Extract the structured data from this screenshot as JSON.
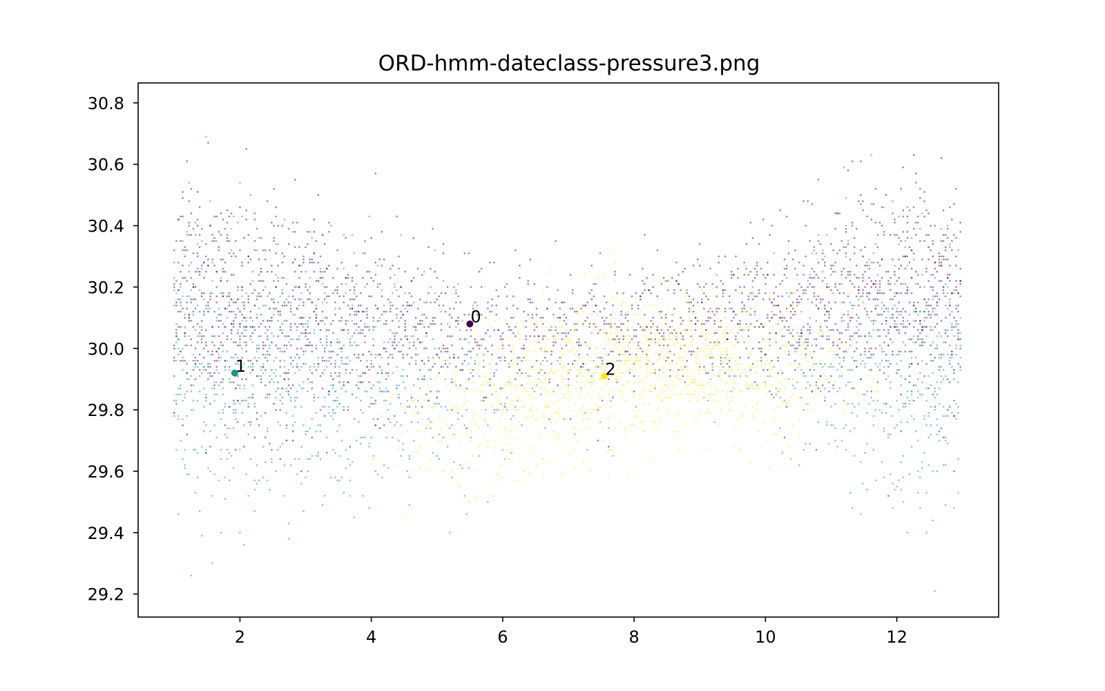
{
  "chart_data": {
    "type": "scatter",
    "title": "ORD-hmm-dateclass-pressure3.png",
    "xlabel": "",
    "ylabel": "",
    "xlim": [
      0.45,
      13.55
    ],
    "ylim": [
      29.125,
      30.865
    ],
    "xticks": [
      2,
      4,
      6,
      8,
      10,
      12
    ],
    "yticks": [
      29.2,
      29.4,
      29.6,
      29.8,
      30.0,
      30.2,
      30.4,
      30.6,
      30.8
    ],
    "ytick_labels": [
      "29.2",
      "29.4",
      "29.6",
      "29.8",
      "30.0",
      "30.2",
      "30.4",
      "30.6",
      "30.8"
    ],
    "grid": false,
    "legend": "none",
    "point_opacity": 0.5,
    "points_per_month_column": 31,
    "series": [
      {
        "color": "#440154",
        "center": [
          5.5,
          30.08
        ],
        "center_label": "0",
        "seasonal_mean": [
          30.15,
          30.15,
          30.1,
          30.06,
          30.05,
          30.06,
          30.05,
          30.07,
          30.1,
          30.13,
          30.16,
          30.18,
          30.18
        ],
        "seasonal_spread": [
          0.16,
          0.16,
          0.15,
          0.12,
          0.11,
          0.09,
          0.08,
          0.08,
          0.09,
          0.11,
          0.13,
          0.15,
          0.16
        ],
        "seasonal_density": [
          0.95,
          0.95,
          0.9,
          0.7,
          0.55,
          0.4,
          0.42,
          0.5,
          0.5,
          0.65,
          0.8,
          0.95,
          0.95
        ]
      },
      {
        "color": "#21918c",
        "center": [
          1.92,
          29.92
        ],
        "center_label": "1",
        "seasonal_mean": [
          29.95,
          29.95,
          29.92,
          29.9,
          29.88,
          29.85,
          29.9,
          29.95,
          29.98,
          29.98,
          29.95,
          29.92,
          29.92
        ],
        "seasonal_spread": [
          0.2,
          0.2,
          0.19,
          0.17,
          0.15,
          0.12,
          0.1,
          0.1,
          0.1,
          0.12,
          0.18,
          0.2,
          0.2
        ],
        "seasonal_density": [
          0.9,
          0.9,
          0.85,
          0.65,
          0.4,
          0.18,
          0.08,
          0.05,
          0.05,
          0.15,
          0.55,
          0.85,
          0.9
        ]
      },
      {
        "color": "#fde725",
        "center": [
          7.55,
          29.91
        ],
        "center_label": "2",
        "seasonal_mean": [
          29.85,
          29.85,
          29.82,
          29.8,
          29.8,
          29.85,
          29.9,
          29.93,
          29.95,
          29.95,
          29.93,
          29.9,
          29.9
        ],
        "seasonal_spread": [
          0.1,
          0.1,
          0.1,
          0.1,
          0.12,
          0.13,
          0.12,
          0.11,
          0.1,
          0.1,
          0.1,
          0.1,
          0.1
        ],
        "seasonal_density": [
          0.0,
          0.0,
          0.0,
          0.05,
          0.25,
          0.6,
          0.8,
          0.85,
          0.85,
          0.6,
          0.2,
          0.0,
          0.0
        ]
      }
    ]
  }
}
